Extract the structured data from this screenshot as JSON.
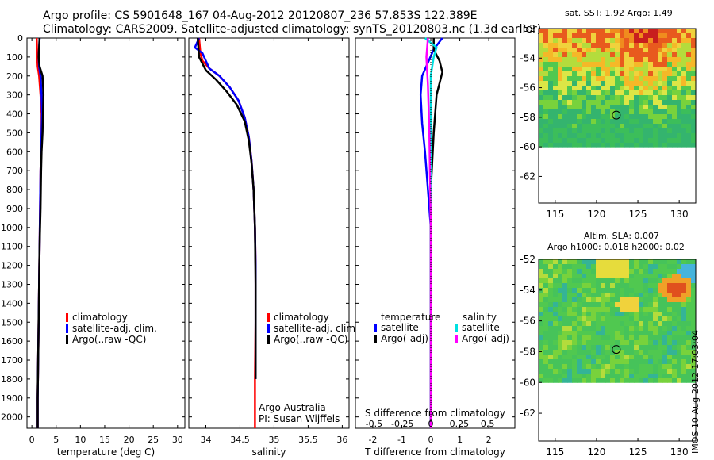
{
  "header": {
    "line1": "Argo profile: CS 5901648_167 04-Aug-2012 20120807_236 57.853S 122.389E",
    "line2": "Climatology: CARS2009. Satellite-adjusted climatology: synTS_20120803.nc (1.3d earlier)"
  },
  "stamp": "IMOS 10-Aug-2012 17:03:04",
  "map_titles": {
    "sst": "sat. SST: 1.92 Argo: 1.49",
    "sla1": "Altim. SLA: 0.007",
    "sla2": "Argo h1000: 0.018 h2000: 0.02"
  },
  "colors": {
    "climatology": "#ff0000",
    "satellite": "#0000ff",
    "argo": "#000000",
    "sat_salinity": "#00e0e0",
    "argo_salinity": "#ff00ff"
  },
  "chart_data": [
    {
      "type": "line",
      "panel": "temperature",
      "xlabel": "temperature (deg C)",
      "xlim": [
        -1,
        31.5
      ],
      "xticks": [
        0,
        5,
        10,
        15,
        20,
        25,
        30
      ],
      "ylim": [
        2060,
        0
      ],
      "yticks": [
        0,
        100,
        200,
        300,
        400,
        500,
        600,
        700,
        800,
        900,
        1000,
        1100,
        1200,
        1300,
        1400,
        1500,
        1600,
        1700,
        1800,
        1900,
        2000
      ],
      "legend": [
        "climatology",
        "satellite-adj. clim.",
        "Argo(..raw -QC)"
      ],
      "series": [
        {
          "name": "climatology",
          "color": "#ff0000",
          "x": [
            1.0,
            1.1,
            1.2,
            1.5,
            1.8,
            2.0,
            2.0,
            1.9,
            1.8,
            1.7,
            1.6,
            1.5,
            1.4,
            1.3,
            1.2,
            1.2
          ],
          "y": [
            0,
            100,
            150,
            200,
            300,
            400,
            500,
            600,
            700,
            900,
            1100,
            1300,
            1500,
            1700,
            1900,
            2060
          ]
        },
        {
          "name": "satellite-adj. clim.",
          "color": "#0000ff",
          "x": [
            1.6,
            1.4,
            1.5,
            1.8,
            2.0,
            2.1,
            2.0,
            1.9,
            1.8,
            1.7,
            1.6,
            1.5,
            1.4,
            1.3,
            1.2,
            1.2
          ],
          "y": [
            0,
            100,
            150,
            200,
            300,
            400,
            500,
            600,
            700,
            900,
            1100,
            1300,
            1500,
            1700,
            1900,
            2060
          ]
        },
        {
          "name": "Argo(..raw -QC)",
          "color": "#000000",
          "x": [
            1.6,
            1.4,
            1.6,
            2.2,
            2.4,
            2.3,
            2.2,
            2.0,
            1.9,
            1.8,
            1.6,
            1.5,
            1.4,
            1.3,
            1.2,
            1.2
          ],
          "y": [
            0,
            100,
            150,
            200,
            300,
            400,
            500,
            600,
            700,
            900,
            1100,
            1300,
            1500,
            1700,
            1900,
            2060
          ]
        }
      ]
    },
    {
      "type": "line",
      "panel": "salinity",
      "xlabel": "salinity",
      "xlim": [
        33.75,
        36.1
      ],
      "xticks": [
        34,
        34.5,
        35,
        35.5,
        36
      ],
      "ylim": [
        2060,
        0
      ],
      "legend": [
        "climatology",
        "satellite-adj. clim.",
        "Argo(..raw -QC)"
      ],
      "annotation": [
        "Argo Australia",
        "PI: Susan Wijffels"
      ],
      "series": [
        {
          "name": "climatology",
          "color": "#ff0000",
          "x": [
            33.9,
            33.92,
            33.95,
            34.05,
            34.2,
            34.35,
            34.48,
            34.57,
            34.63,
            34.67,
            34.7,
            34.72,
            34.73,
            34.73,
            34.72,
            34.72,
            34.72
          ],
          "y": [
            0,
            80,
            120,
            160,
            200,
            260,
            330,
            420,
            520,
            650,
            800,
            1000,
            1200,
            1500,
            1800,
            1950,
            2060
          ]
        },
        {
          "name": "satellite-adj. clim.",
          "color": "#0000ff",
          "x": [
            33.9,
            33.84,
            33.95,
            34.0,
            34.05,
            34.2,
            34.35,
            34.48,
            34.57,
            34.63,
            34.67,
            34.7,
            34.72,
            34.73,
            34.73,
            34.73
          ],
          "y": [
            0,
            50,
            80,
            120,
            160,
            200,
            260,
            330,
            420,
            520,
            650,
            800,
            1000,
            1200,
            1500,
            1800
          ]
        },
        {
          "name": "Argo(..raw -QC)",
          "color": "#000000",
          "x": [
            33.88,
            33.9,
            34.0,
            34.15,
            34.3,
            34.45,
            34.57,
            34.63,
            34.67,
            34.7,
            34.72,
            34.73,
            34.73
          ],
          "y": [
            0,
            100,
            170,
            220,
            280,
            350,
            440,
            540,
            660,
            800,
            1000,
            1300,
            1800
          ]
        }
      ]
    },
    {
      "type": "line",
      "panel": "difference",
      "xlabel": "T difference from climatology",
      "xlabel_top": "S difference from climatology",
      "xlim": [
        -2.6,
        2.9
      ],
      "xticks": [
        -2,
        -1,
        0,
        1,
        2
      ],
      "sticks_labels": [
        "-0.5",
        "-0.25",
        "0",
        "0.25",
        "0.5"
      ],
      "ylim": [
        2060,
        0
      ],
      "legend_headings": [
        "temperature",
        "salinity"
      ],
      "legend": [
        "satellite",
        "Argo(-adj)",
        "satellite",
        "Argo(-adj)"
      ],
      "series": [
        {
          "name": "temperature satellite",
          "color": "#0000ff",
          "x": [
            0.4,
            0.1,
            -0.3,
            -0.35,
            -0.3,
            -0.2,
            -0.1,
            0.0,
            0.0,
            0.0,
            0.0
          ],
          "y": [
            0,
            60,
            200,
            300,
            450,
            600,
            800,
            1000,
            1400,
            1800,
            2060
          ]
        },
        {
          "name": "temperature Argo(-adj)",
          "color": "#000000",
          "x": [
            0.1,
            0.1,
            0.3,
            0.4,
            0.2,
            0.1,
            0.0,
            0.0,
            0.0
          ],
          "y": [
            0,
            60,
            120,
            180,
            300,
            500,
            800,
            1400,
            2060
          ]
        },
        {
          "name": "salinity satellite",
          "color": "#00e0e0",
          "x": [
            -0.2,
            0.2,
            0.1,
            0.0,
            0.0,
            0.0,
            0.0
          ],
          "y": [
            0,
            50,
            100,
            200,
            600,
            1200,
            2060
          ]
        },
        {
          "name": "salinity Argo(-adj)",
          "color": "#ff00ff",
          "x": [
            -0.1,
            -0.15,
            -0.1,
            -0.05,
            0.0,
            0.0
          ],
          "y": [
            0,
            100,
            250,
            500,
            1000,
            2060
          ]
        }
      ]
    },
    {
      "type": "heatmap",
      "panel": "sst-map",
      "title": "sat. SST: 1.92 Argo: 1.49",
      "xlim": [
        113,
        132
      ],
      "ylim": [
        -63.8,
        -52
      ],
      "xticks": [
        115,
        120,
        125,
        130
      ],
      "yticks": [
        -52,
        -54,
        -56,
        -58,
        -60,
        -62
      ],
      "marker": {
        "lon": 122.389,
        "lat": -57.853
      }
    },
    {
      "type": "heatmap",
      "panel": "sla-map",
      "title": "Altim. SLA: 0.007",
      "xlim": [
        113,
        132
      ],
      "ylim": [
        -63.8,
        -52
      ],
      "xticks": [
        115,
        120,
        125,
        130
      ],
      "yticks": [
        -52,
        -54,
        -56,
        -58,
        -60,
        -62
      ],
      "marker": {
        "lon": 122.389,
        "lat": -57.853
      }
    }
  ]
}
